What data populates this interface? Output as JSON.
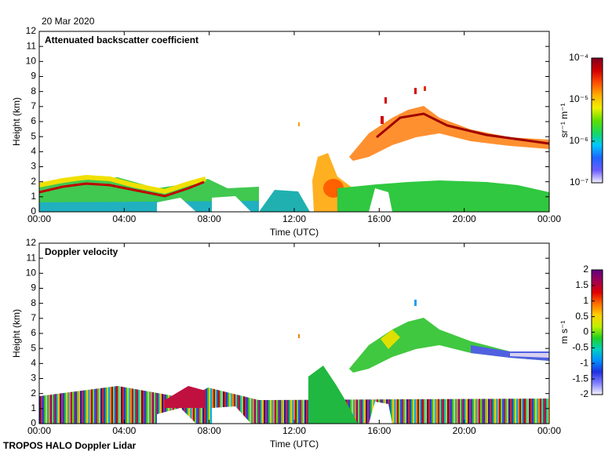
{
  "date": "20 Mar 2020",
  "footer": "TROPOS HALO Doppler Lidar",
  "chart_data": [
    {
      "type": "heatmap",
      "title": "Attenuated backscatter coefficient",
      "xlabel": "Time (UTC)",
      "ylabel": "Height (km)",
      "xlim": [
        0,
        24
      ],
      "xticks": [
        {
          "value": 0,
          "label": "00:00"
        },
        {
          "value": 4,
          "label": "04:00"
        },
        {
          "value": 8,
          "label": "08:00"
        },
        {
          "value": 12,
          "label": "12:00"
        },
        {
          "value": 16,
          "label": "16:00"
        },
        {
          "value": 20,
          "label": "20:00"
        },
        {
          "value": 24,
          "label": "00:00"
        }
      ],
      "ylim": [
        0,
        12
      ],
      "yticks": [
        0,
        1,
        2,
        3,
        4,
        5,
        6,
        7,
        8,
        9,
        10,
        11,
        12
      ],
      "colorbar": {
        "label": "sr⁻¹ m⁻¹",
        "log": true,
        "lim": [
          1e-07,
          0.0001
        ],
        "ticks": [
          {
            "value": 1e-07,
            "label": "10⁻⁷"
          },
          {
            "value": 1e-06,
            "label": "10⁻⁶"
          },
          {
            "value": 1e-05,
            "label": "10⁻⁵"
          },
          {
            "value": 0.0001,
            "label": "10⁻⁴"
          }
        ],
        "colormap": [
          "#f4f0ff",
          "#6a5cff",
          "#1e64ff",
          "#00c8ff",
          "#18d860",
          "#60e000",
          "#f0f000",
          "#ffb000",
          "#ff5000",
          "#d00000",
          "#800020"
        ]
      }
    },
    {
      "type": "heatmap",
      "title": "Doppler velocity",
      "xlabel": "Time (UTC)",
      "ylabel": "Height (km)",
      "xlim": [
        0,
        24
      ],
      "xticks": [
        {
          "value": 0,
          "label": "00:00"
        },
        {
          "value": 4,
          "label": "04:00"
        },
        {
          "value": 8,
          "label": "08:00"
        },
        {
          "value": 12,
          "label": "12:00"
        },
        {
          "value": 16,
          "label": "16:00"
        },
        {
          "value": 20,
          "label": "20:00"
        },
        {
          "value": 24,
          "label": "00:00"
        }
      ],
      "ylim": [
        0,
        12
      ],
      "yticks": [
        0,
        1,
        2,
        3,
        4,
        5,
        6,
        7,
        8,
        9,
        10,
        11,
        12
      ],
      "colorbar": {
        "label": "m s⁻¹",
        "log": false,
        "lim": [
          -2,
          2
        ],
        "ticks": [
          -2,
          -1.5,
          -1,
          -0.5,
          0,
          0.5,
          1,
          1.5,
          2
        ],
        "colormap": [
          "#f8f4ff",
          "#8080ff",
          "#2030e0",
          "#0090ff",
          "#00d0c0",
          "#20d020",
          "#c0f000",
          "#ffd000",
          "#ff7000",
          "#e00000",
          "#a00050",
          "#600080"
        ]
      }
    }
  ]
}
